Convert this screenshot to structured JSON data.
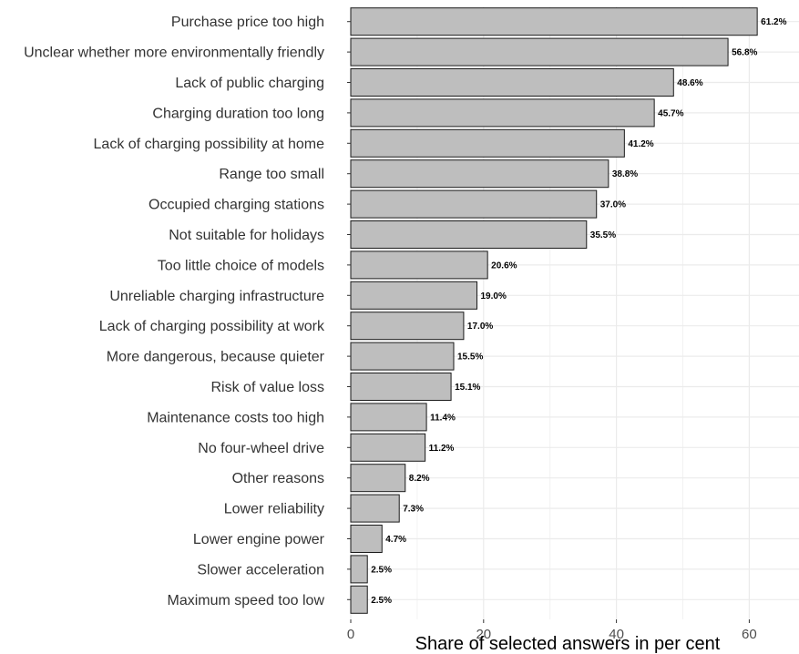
{
  "chart_data": {
    "type": "bar",
    "orientation": "horizontal",
    "title": "",
    "xlabel": "Share of selected answers in per cent",
    "ylabel": "",
    "xlim": [
      0,
      67
    ],
    "xticks": [
      0,
      20,
      40,
      60
    ],
    "grid": true,
    "categories": [
      "Purchase price too high",
      "Unclear whether more environmentally friendly",
      "Lack of public charging",
      "Charging duration too long",
      "Lack of charging possibility at home",
      "Range too small",
      "Occupied charging stations",
      "Not suitable for holidays",
      "Too little choice of models",
      "Unreliable charging infrastructure",
      "Lack of charging possibility at work",
      "More dangerous, because quieter",
      "Risk of value loss",
      "Maintenance costs too high",
      "No four-wheel drive",
      "Other reasons",
      "Lower reliability",
      "Lower engine power",
      "Slower acceleration",
      "Maximum speed too low"
    ],
    "values": [
      61.2,
      56.8,
      48.6,
      45.7,
      41.2,
      38.8,
      37.0,
      35.5,
      20.6,
      19.0,
      17.0,
      15.5,
      15.1,
      11.4,
      11.2,
      8.2,
      7.3,
      4.7,
      2.5,
      2.5
    ],
    "data_labels": [
      "61.2%",
      "56.8%",
      "48.6%",
      "45.7%",
      "41.2%",
      "38.8%",
      "37.0%",
      "35.5%",
      "20.6%",
      "19.0%",
      "17.0%",
      "15.5%",
      "15.1%",
      "11.4%",
      "11.2%",
      "8.2%",
      "7.3%",
      "4.7%",
      "2.5%",
      "2.5%"
    ],
    "colors": {
      "bar_fill": "#bebebe",
      "bar_stroke": "#1a1a1a",
      "grid": "#ebebeb",
      "axis_text": "#4d4d4d"
    }
  }
}
